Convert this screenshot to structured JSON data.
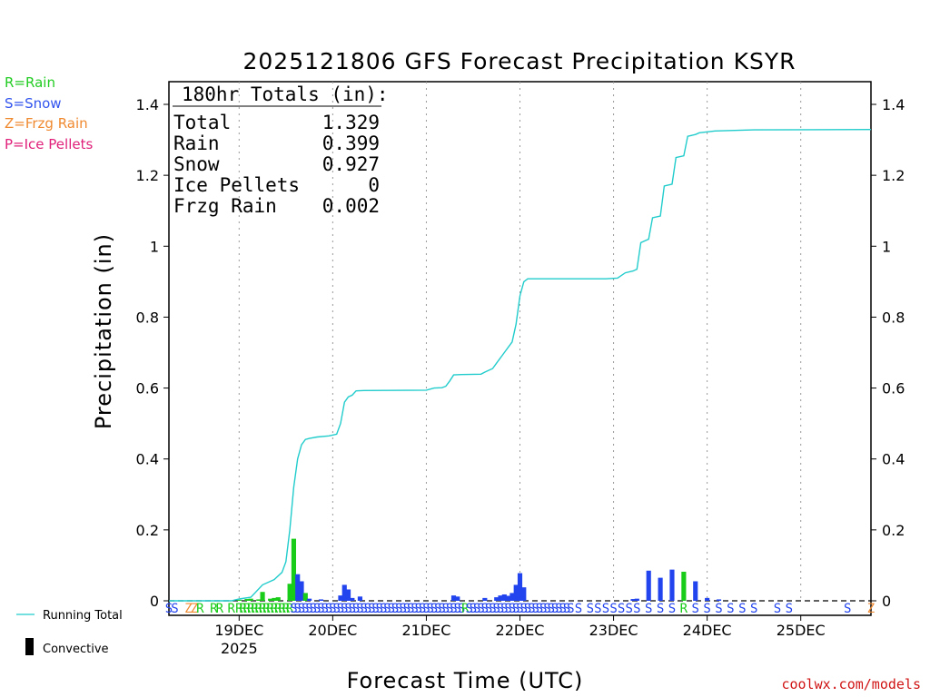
{
  "chart_data": {
    "type": "bar+line",
    "title": "2025121806 GFS Forecast Precipitation KSYR",
    "xlabel": "Forecast Time (UTC)",
    "ylabel": "Precipitation (in)",
    "ylim": [
      0,
      1.45
    ],
    "y_ticks": [
      {
        "value": 0,
        "label": "0"
      },
      {
        "value": 0.2,
        "label": "0.2"
      },
      {
        "value": 0.4,
        "label": "0.4"
      },
      {
        "value": 0.6,
        "label": "0.6"
      },
      {
        "value": 0.8,
        "label": "0.8"
      },
      {
        "value": 1.0,
        "label": "1"
      },
      {
        "value": 1.2,
        "label": "1.2"
      },
      {
        "value": 1.4,
        "label": "1.4"
      }
    ],
    "x_range_hours": [
      0,
      180
    ],
    "x_ticks": [
      {
        "hour": 18,
        "label": "19DEC",
        "sublabel": "2025"
      },
      {
        "hour": 42,
        "label": "20DEC",
        "sublabel": ""
      },
      {
        "hour": 66,
        "label": "21DEC",
        "sublabel": ""
      },
      {
        "hour": 90,
        "label": "22DEC",
        "sublabel": ""
      },
      {
        "hour": 114,
        "label": "23DEC",
        "sublabel": ""
      },
      {
        "hour": 138,
        "label": "24DEC",
        "sublabel": ""
      },
      {
        "hour": 162,
        "label": "25DEC",
        "sublabel": ""
      }
    ],
    "type_legend": [
      {
        "label": "R=Rain",
        "color": "#22cc22"
      },
      {
        "label": "S=Snow",
        "color": "#3355ee"
      },
      {
        "label": "Z=Frzg Rain",
        "color": "#f08a30"
      },
      {
        "label": "P=Ice Pellets",
        "color": "#e0207a"
      }
    ],
    "colors": {
      "R": "#19cc19",
      "S": "#2244ee",
      "Z": "#f08a30",
      "P": "#e0207a",
      "line": "#22cccc"
    },
    "totals_box": {
      "header": "180hr Totals (in):",
      "rows": [
        {
          "label": "Total",
          "value": "1.329"
        },
        {
          "label": "Rain",
          "value": "0.399"
        },
        {
          "label": "Snow",
          "value": "0.927"
        },
        {
          "label": "Ice Pellets",
          "value": "0"
        },
        {
          "label": "Frzg Rain",
          "value": "0.002"
        }
      ]
    },
    "series_legend": {
      "line": "Running Total",
      "bar": "Convective"
    },
    "credit": "coolwx.com/models",
    "bars": [
      {
        "hour": 18,
        "value": 0.003,
        "type": "R"
      },
      {
        "hour": 20,
        "value": 0.005,
        "type": "R"
      },
      {
        "hour": 21,
        "value": 0.006,
        "type": "R"
      },
      {
        "hour": 23,
        "value": 0.004,
        "type": "R"
      },
      {
        "hour": 24,
        "value": 0.025,
        "type": "R"
      },
      {
        "hour": 26,
        "value": 0.006,
        "type": "R"
      },
      {
        "hour": 27,
        "value": 0.008,
        "type": "R"
      },
      {
        "hour": 28,
        "value": 0.01,
        "type": "R"
      },
      {
        "hour": 31,
        "value": 0.048,
        "type": "R"
      },
      {
        "hour": 32,
        "value": 0.175,
        "type": "R"
      },
      {
        "hour": 33,
        "value": 0.075,
        "type": "S"
      },
      {
        "hour": 34,
        "value": 0.055,
        "type": "S"
      },
      {
        "hour": 35,
        "value": 0.022,
        "type": "R"
      },
      {
        "hour": 36,
        "value": 0.006,
        "type": "S"
      },
      {
        "hour": 39,
        "value": 0.004,
        "type": "S"
      },
      {
        "hour": 44,
        "value": 0.015,
        "type": "S"
      },
      {
        "hour": 45,
        "value": 0.045,
        "type": "S"
      },
      {
        "hour": 46,
        "value": 0.032,
        "type": "S"
      },
      {
        "hour": 47,
        "value": 0.008,
        "type": "S"
      },
      {
        "hour": 49,
        "value": 0.012,
        "type": "S"
      },
      {
        "hour": 73,
        "value": 0.015,
        "type": "S"
      },
      {
        "hour": 74,
        "value": 0.012,
        "type": "S"
      },
      {
        "hour": 81,
        "value": 0.008,
        "type": "S"
      },
      {
        "hour": 84,
        "value": 0.01,
        "type": "S"
      },
      {
        "hour": 85,
        "value": 0.015,
        "type": "S"
      },
      {
        "hour": 86,
        "value": 0.018,
        "type": "S"
      },
      {
        "hour": 87,
        "value": 0.014,
        "type": "S"
      },
      {
        "hour": 88,
        "value": 0.022,
        "type": "S"
      },
      {
        "hour": 89,
        "value": 0.045,
        "type": "S"
      },
      {
        "hour": 90,
        "value": 0.078,
        "type": "S"
      },
      {
        "hour": 91,
        "value": 0.038,
        "type": "S"
      },
      {
        "hour": 119,
        "value": 0.005,
        "type": "S"
      },
      {
        "hour": 120,
        "value": 0.006,
        "type": "S"
      },
      {
        "hour": 123,
        "value": 0.085,
        "type": "S"
      },
      {
        "hour": 126,
        "value": 0.065,
        "type": "S"
      },
      {
        "hour": 129,
        "value": 0.088,
        "type": "S"
      },
      {
        "hour": 132,
        "value": 0.082,
        "type": "R"
      },
      {
        "hour": 135,
        "value": 0.055,
        "type": "S"
      },
      {
        "hour": 138,
        "value": 0.008,
        "type": "S"
      },
      {
        "hour": 141,
        "value": 0.004,
        "type": "S"
      }
    ],
    "running_total": [
      [
        0,
        0
      ],
      [
        16,
        0
      ],
      [
        18,
        0.005
      ],
      [
        21,
        0.01
      ],
      [
        24,
        0.045
      ],
      [
        27,
        0.06
      ],
      [
        29,
        0.08
      ],
      [
        30,
        0.11
      ],
      [
        31,
        0.2
      ],
      [
        32,
        0.32
      ],
      [
        33,
        0.4
      ],
      [
        34,
        0.44
      ],
      [
        35,
        0.455
      ],
      [
        36,
        0.458
      ],
      [
        38,
        0.462
      ],
      [
        41,
        0.465
      ],
      [
        43,
        0.47
      ],
      [
        44,
        0.5
      ],
      [
        45,
        0.56
      ],
      [
        46,
        0.575
      ],
      [
        47,
        0.58
      ],
      [
        48,
        0.592
      ],
      [
        50,
        0.593
      ],
      [
        66,
        0.594
      ],
      [
        68,
        0.6
      ],
      [
        70,
        0.601
      ],
      [
        71,
        0.605
      ],
      [
        72,
        0.62
      ],
      [
        73,
        0.637
      ],
      [
        75,
        0.638
      ],
      [
        80,
        0.639
      ],
      [
        81,
        0.645
      ],
      [
        83,
        0.655
      ],
      [
        84,
        0.67
      ],
      [
        86,
        0.7
      ],
      [
        88,
        0.73
      ],
      [
        89,
        0.78
      ],
      [
        90,
        0.86
      ],
      [
        91,
        0.9
      ],
      [
        92,
        0.908
      ],
      [
        100,
        0.908
      ],
      [
        112,
        0.908
      ],
      [
        115,
        0.91
      ],
      [
        117,
        0.925
      ],
      [
        119,
        0.93
      ],
      [
        120,
        0.935
      ],
      [
        121,
        1.01
      ],
      [
        123,
        1.02
      ],
      [
        124,
        1.08
      ],
      [
        126,
        1.085
      ],
      [
        127,
        1.17
      ],
      [
        129,
        1.175
      ],
      [
        130,
        1.25
      ],
      [
        132,
        1.255
      ],
      [
        133,
        1.31
      ],
      [
        135,
        1.315
      ],
      [
        136,
        1.32
      ],
      [
        140,
        1.325
      ],
      [
        150,
        1.328
      ],
      [
        180,
        1.329
      ]
    ],
    "ptype_row": [
      {
        "hour": 0,
        "code": "S"
      },
      {
        "hour": 1.5,
        "code": "S"
      },
      {
        "hour": 5,
        "code": "Z"
      },
      {
        "hour": 6.5,
        "code": "Z"
      },
      {
        "hour": 8,
        "code": "R"
      },
      {
        "hour": 11.5,
        "code": "R"
      },
      {
        "hour": 13,
        "code": "R"
      },
      {
        "hour": 16,
        "code": "R"
      },
      {
        "hour": 18,
        "code": "R"
      },
      {
        "hour": 19,
        "code": "R"
      },
      {
        "hour": 20,
        "code": "R"
      },
      {
        "hour": 21,
        "code": "R"
      },
      {
        "hour": 22,
        "code": "R"
      },
      {
        "hour": 23,
        "code": "R"
      },
      {
        "hour": 24,
        "code": "R"
      },
      {
        "hour": 25,
        "code": "R"
      },
      {
        "hour": 26,
        "code": "R"
      },
      {
        "hour": 27,
        "code": "R"
      },
      {
        "hour": 28,
        "code": "R"
      },
      {
        "hour": 29,
        "code": "R"
      },
      {
        "hour": 30,
        "code": "R"
      },
      {
        "hour": 31,
        "code": "R"
      },
      {
        "hour": 32,
        "code": "S"
      },
      {
        "hour": 33,
        "code": "S"
      },
      {
        "hour": 34,
        "code": "S"
      },
      {
        "hour": 35,
        "code": "S"
      },
      {
        "hour": 36,
        "code": "S"
      },
      {
        "hour": 37,
        "code": "S"
      },
      {
        "hour": 38,
        "code": "S"
      },
      {
        "hour": 39,
        "code": "S"
      },
      {
        "hour": 40,
        "code": "S"
      },
      {
        "hour": 41,
        "code": "S"
      },
      {
        "hour": 42,
        "code": "S"
      },
      {
        "hour": 43,
        "code": "S"
      },
      {
        "hour": 44,
        "code": "S"
      },
      {
        "hour": 45,
        "code": "S"
      },
      {
        "hour": 46,
        "code": "S"
      },
      {
        "hour": 47,
        "code": "S"
      },
      {
        "hour": 48,
        "code": "S"
      },
      {
        "hour": 49,
        "code": "S"
      },
      {
        "hour": 50,
        "code": "S"
      },
      {
        "hour": 51,
        "code": "S"
      },
      {
        "hour": 52,
        "code": "S"
      },
      {
        "hour": 53,
        "code": "S"
      },
      {
        "hour": 54,
        "code": "S"
      },
      {
        "hour": 55,
        "code": "S"
      },
      {
        "hour": 56,
        "code": "S"
      },
      {
        "hour": 57,
        "code": "S"
      },
      {
        "hour": 58,
        "code": "S"
      },
      {
        "hour": 59,
        "code": "S"
      },
      {
        "hour": 60,
        "code": "S"
      },
      {
        "hour": 61,
        "code": "S"
      },
      {
        "hour": 62,
        "code": "S"
      },
      {
        "hour": 63,
        "code": "S"
      },
      {
        "hour": 64,
        "code": "S"
      },
      {
        "hour": 65,
        "code": "S"
      },
      {
        "hour": 66,
        "code": "S"
      },
      {
        "hour": 67,
        "code": "S"
      },
      {
        "hour": 68,
        "code": "S"
      },
      {
        "hour": 69,
        "code": "S"
      },
      {
        "hour": 70,
        "code": "S"
      },
      {
        "hour": 71,
        "code": "S"
      },
      {
        "hour": 72,
        "code": "S"
      },
      {
        "hour": 73,
        "code": "S"
      },
      {
        "hour": 74,
        "code": "S"
      },
      {
        "hour": 75,
        "code": "S"
      },
      {
        "hour": 76,
        "code": "R"
      },
      {
        "hour": 77,
        "code": "S"
      },
      {
        "hour": 78,
        "code": "S"
      },
      {
        "hour": 79,
        "code": "S"
      },
      {
        "hour": 80,
        "code": "S"
      },
      {
        "hour": 81,
        "code": "S"
      },
      {
        "hour": 82,
        "code": "S"
      },
      {
        "hour": 83,
        "code": "S"
      },
      {
        "hour": 84,
        "code": "S"
      },
      {
        "hour": 85,
        "code": "S"
      },
      {
        "hour": 86,
        "code": "S"
      },
      {
        "hour": 87,
        "code": "S"
      },
      {
        "hour": 88,
        "code": "S"
      },
      {
        "hour": 89,
        "code": "S"
      },
      {
        "hour": 90,
        "code": "S"
      },
      {
        "hour": 91,
        "code": "S"
      },
      {
        "hour": 92,
        "code": "S"
      },
      {
        "hour": 93,
        "code": "S"
      },
      {
        "hour": 94,
        "code": "S"
      },
      {
        "hour": 95,
        "code": "S"
      },
      {
        "hour": 96,
        "code": "S"
      },
      {
        "hour": 97,
        "code": "S"
      },
      {
        "hour": 98,
        "code": "S"
      },
      {
        "hour": 99,
        "code": "S"
      },
      {
        "hour": 100,
        "code": "S"
      },
      {
        "hour": 101,
        "code": "S"
      },
      {
        "hour": 102,
        "code": "S"
      },
      {
        "hour": 103,
        "code": "S"
      },
      {
        "hour": 105,
        "code": "S"
      },
      {
        "hour": 108,
        "code": "S"
      },
      {
        "hour": 110,
        "code": "S"
      },
      {
        "hour": 112,
        "code": "S"
      },
      {
        "hour": 114,
        "code": "S"
      },
      {
        "hour": 116,
        "code": "S"
      },
      {
        "hour": 118,
        "code": "S"
      },
      {
        "hour": 120,
        "code": "S"
      },
      {
        "hour": 123,
        "code": "S"
      },
      {
        "hour": 126,
        "code": "S"
      },
      {
        "hour": 129,
        "code": "S"
      },
      {
        "hour": 132,
        "code": "R"
      },
      {
        "hour": 135,
        "code": "S"
      },
      {
        "hour": 138,
        "code": "S"
      },
      {
        "hour": 141,
        "code": "S"
      },
      {
        "hour": 144,
        "code": "S"
      },
      {
        "hour": 147,
        "code": "S"
      },
      {
        "hour": 150,
        "code": "S"
      },
      {
        "hour": 156,
        "code": "S"
      },
      {
        "hour": 159,
        "code": "S"
      },
      {
        "hour": 174,
        "code": "S"
      },
      {
        "hour": 180,
        "code": "Z"
      }
    ]
  }
}
